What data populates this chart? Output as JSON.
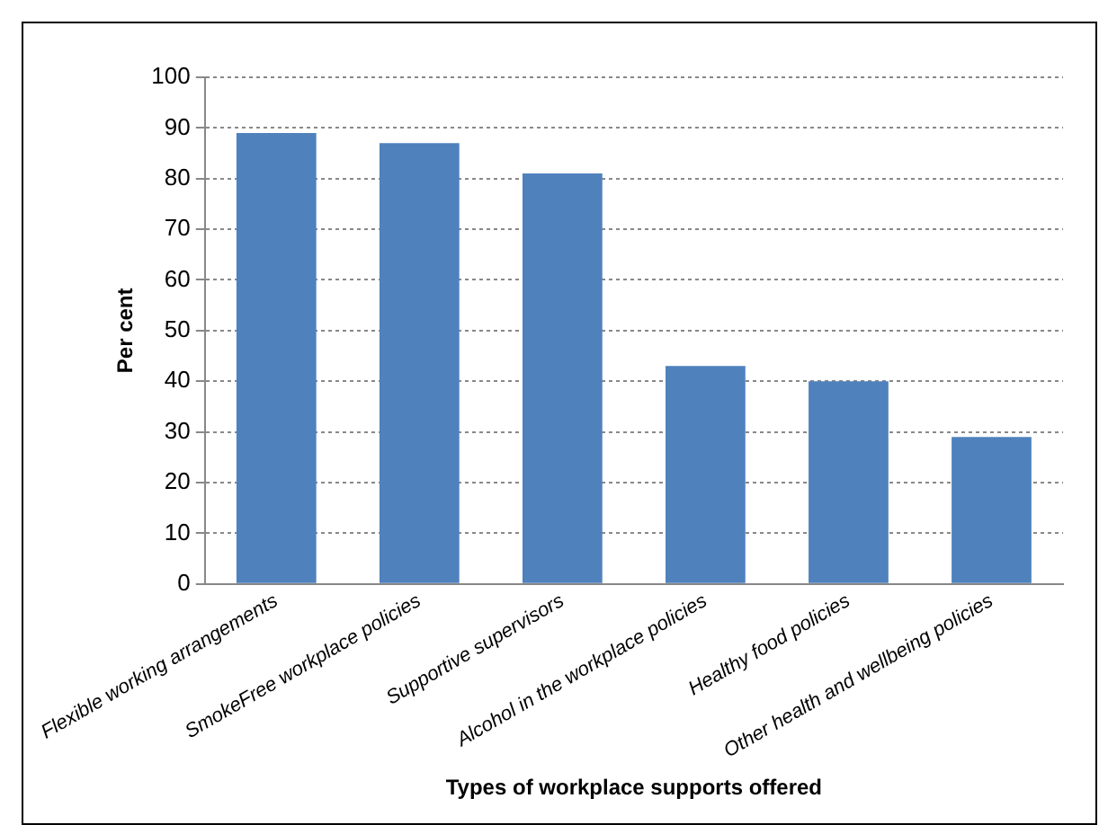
{
  "chart_data": {
    "type": "bar",
    "xlabel": "Types of workplace supports offered",
    "ylabel": "Per cent",
    "categories": [
      "Flexible working arrangements",
      "SmokeFree workplace policies",
      "Supportive supervisors",
      "Alcohol in the workplace policies",
      "Healthy food policies",
      "Other health and wellbeing policies"
    ],
    "values": [
      89,
      87,
      81,
      43,
      40,
      29
    ],
    "color": "#4f81bd",
    "ylim": [
      0,
      100
    ],
    "yticks": [
      0,
      10,
      20,
      30,
      40,
      50,
      60,
      70,
      80,
      90,
      100
    ],
    "grid": "y",
    "legend": false
  }
}
